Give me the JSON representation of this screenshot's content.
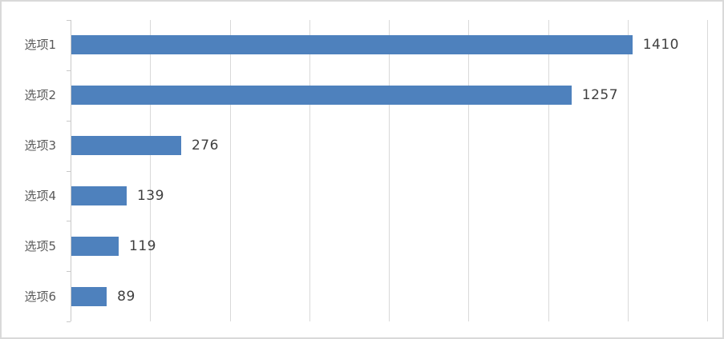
{
  "chart_data": {
    "type": "bar",
    "orientation": "horizontal",
    "title": "",
    "xlabel": "",
    "ylabel": "",
    "categories": [
      "选项1",
      "选项2",
      "选项3",
      "选项4",
      "选项5",
      "选项6"
    ],
    "values": [
      1410,
      1257,
      276,
      139,
      119,
      89
    ],
    "xlim": [
      0,
      1600
    ],
    "grid_step": 200,
    "grid": true,
    "legend": false,
    "axis_tick_labels_visible": false,
    "data_labels_visible": true
  },
  "style": {
    "bar_color": "#4e81bd",
    "grid_color": "#d9d9d9",
    "axis_color": "#c9c9c9",
    "tick_color": "#c9c9c9",
    "frame_border_color": "#d9d9d9",
    "background_color": "#ffffff",
    "category_text_color": "#595959",
    "value_text_color": "#3f3f3f"
  }
}
